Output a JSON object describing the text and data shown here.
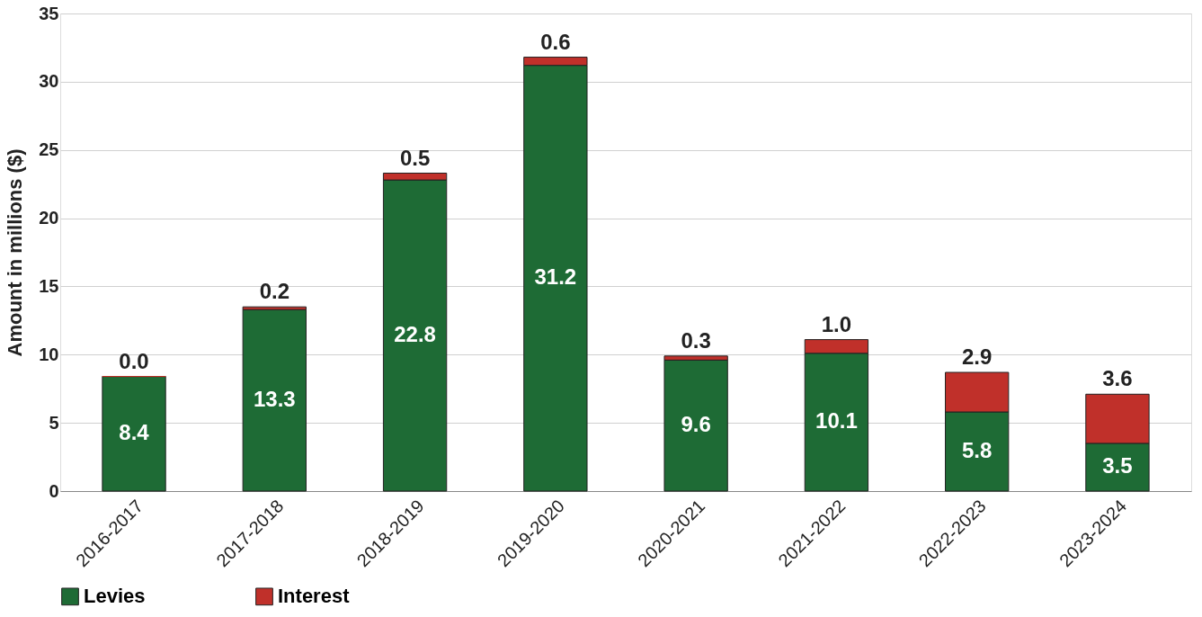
{
  "chart_data": {
    "type": "bar",
    "stacked": true,
    "ylabel": "Amount in millions ($)",
    "categories": [
      "2016-2017",
      "2017-2018",
      "2018-2019",
      "2019-2020",
      "2020-2021",
      "2021-2022",
      "2022-2023",
      "2023-2024"
    ],
    "series": [
      {
        "name": "Levies",
        "color": "#1e6b35",
        "values": [
          8.4,
          13.3,
          22.8,
          31.2,
          9.6,
          10.1,
          5.8,
          3.5
        ],
        "value_labels": [
          "8.4",
          "13.3",
          "22.8",
          "31.2",
          "9.6",
          "10.1",
          "5.8",
          "3.5"
        ]
      },
      {
        "name": "Interest",
        "color": "#c0302a",
        "values": [
          0.0,
          0.2,
          0.5,
          0.6,
          0.3,
          1.0,
          2.9,
          3.6
        ],
        "value_labels": [
          "0.0",
          "0.2",
          "0.5",
          "0.6",
          "0.3",
          "1.0",
          "2.9",
          "3.6"
        ]
      }
    ],
    "ylim": [
      0,
      35
    ],
    "yticks": [
      0,
      5,
      10,
      15,
      20,
      25,
      30,
      35
    ],
    "grid": "y",
    "legend": "bottom"
  }
}
